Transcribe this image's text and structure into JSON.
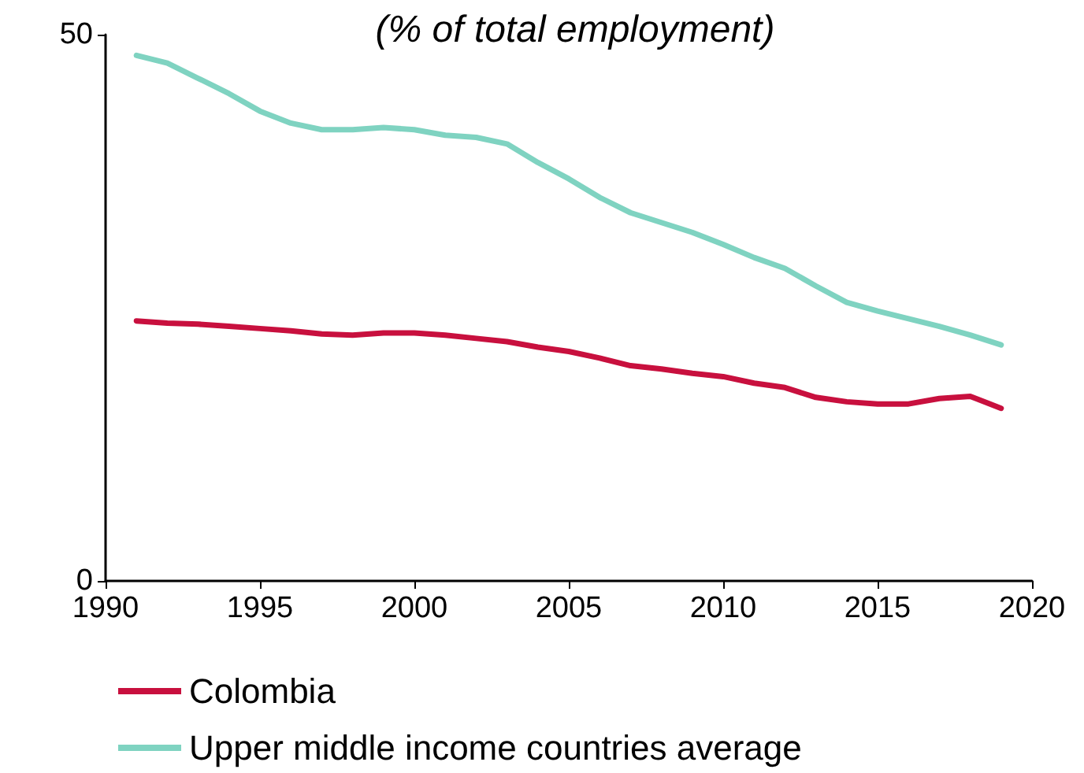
{
  "chart_data": {
    "type": "line",
    "subtitle": "(% of total employment)",
    "x": [
      1991,
      1992,
      1993,
      1994,
      1995,
      1996,
      1997,
      1998,
      1999,
      2000,
      2001,
      2002,
      2003,
      2004,
      2005,
      2006,
      2007,
      2008,
      2009,
      2010,
      2011,
      2012,
      2013,
      2014,
      2015,
      2016,
      2017,
      2018,
      2019
    ],
    "series": [
      {
        "name": "Colombia",
        "color": "#c8103e",
        "values": [
          23.8,
          23.6,
          23.5,
          23.3,
          23.1,
          22.9,
          22.6,
          22.5,
          22.7,
          22.7,
          22.5,
          22.2,
          21.9,
          21.4,
          21.0,
          20.4,
          19.7,
          19.4,
          19.0,
          18.7,
          18.1,
          17.7,
          16.8,
          16.4,
          16.2,
          16.2,
          16.7,
          16.9,
          15.8
        ]
      },
      {
        "name": "Upper middle income countries average",
        "color": "#7fd3c1",
        "values": [
          48.1,
          47.4,
          46.0,
          44.6,
          43.0,
          41.9,
          41.3,
          41.3,
          41.5,
          41.3,
          40.8,
          40.6,
          40.0,
          38.3,
          36.8,
          35.1,
          33.7,
          32.8,
          31.9,
          30.8,
          29.6,
          28.6,
          27.0,
          25.5,
          24.7,
          24.0,
          23.3,
          22.5,
          21.6
        ]
      }
    ],
    "xlim": [
      1990,
      2020
    ],
    "xticks": [
      1990,
      1995,
      2000,
      2005,
      2010,
      2015,
      2020
    ],
    "ylim": [
      0,
      50
    ],
    "yticks": [
      0,
      50
    ],
    "grid": false,
    "legend": "bottom left",
    "marker": "none",
    "line_style": "solid"
  }
}
